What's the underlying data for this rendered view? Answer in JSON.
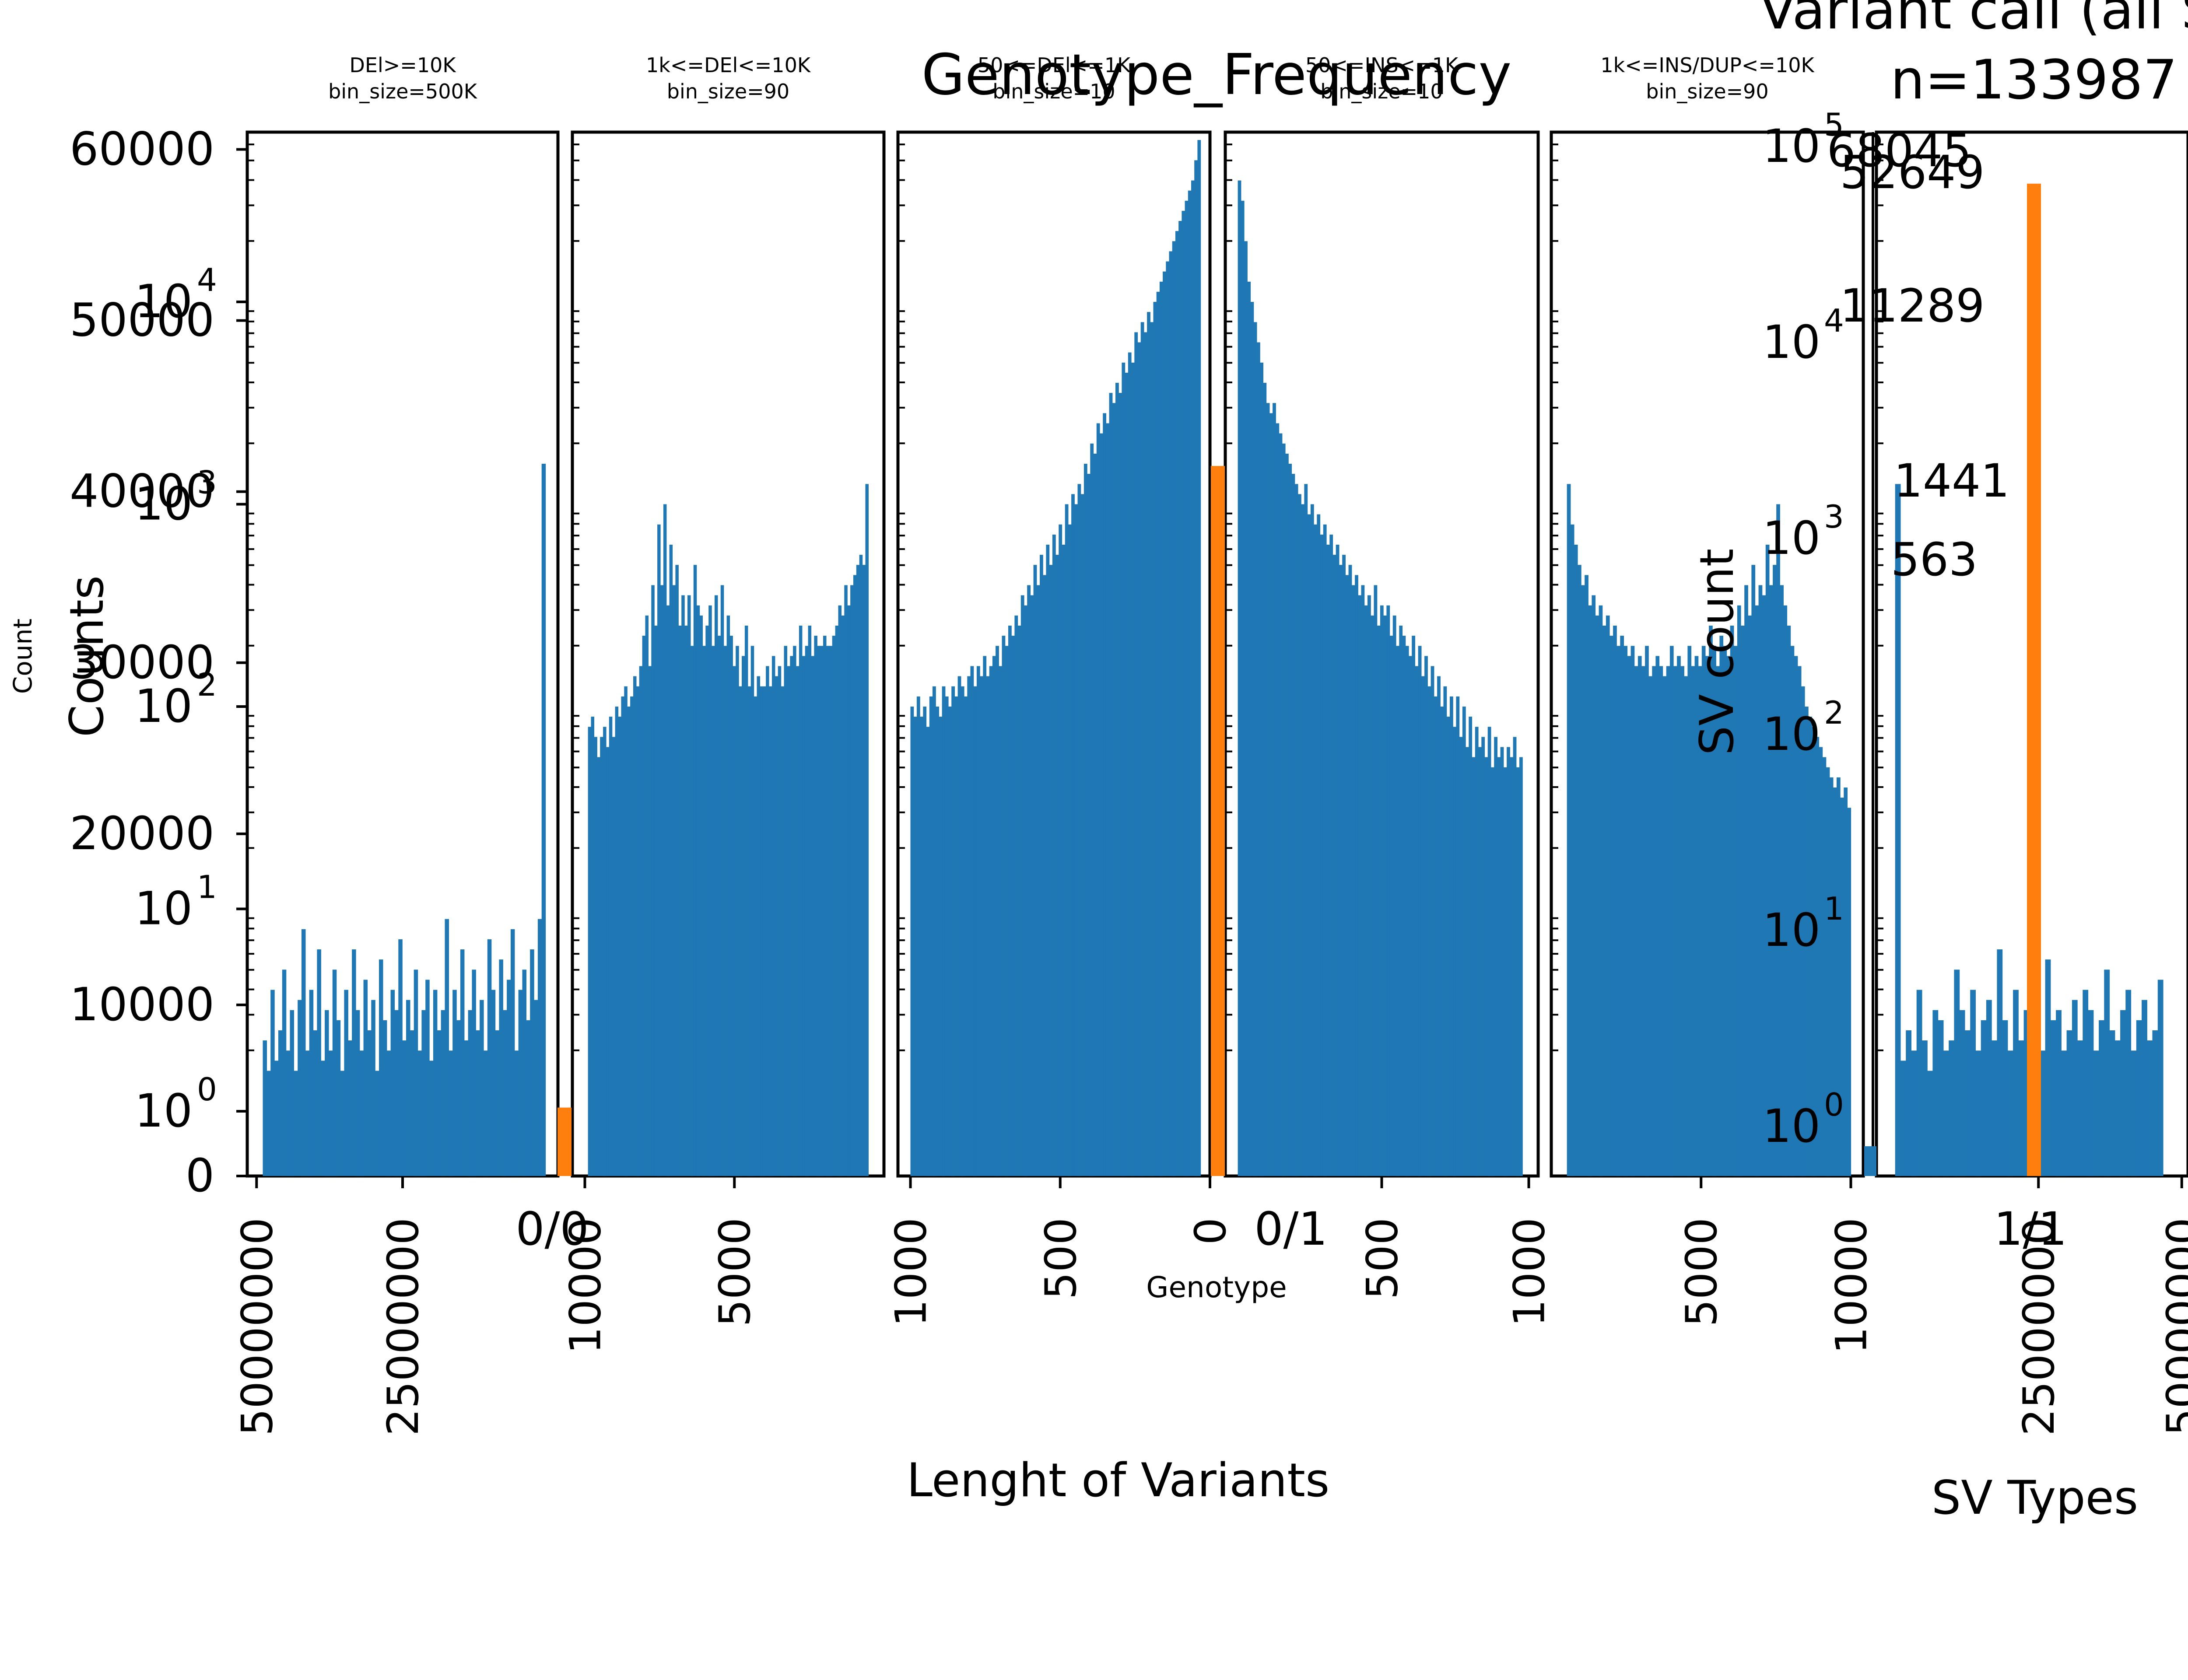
{
  "chart_data": {
    "type": "bar",
    "colors": {
      "bars": "#1f77b4",
      "genotype": "#ff7f0e",
      "frame": "#000000"
    },
    "overlay_texts": {
      "genotype_title": "Genotype_Frequency",
      "variant_title_line1": "Variant call (all S",
      "variant_title_line2": "n=133987",
      "xlabel_main": "Lenght of Variants",
      "xlabel_genotype": "Genotype",
      "xlabel_svtypes": "SV Types",
      "ylabel_counts": "Counts",
      "ylabel_count": "Count",
      "ylabel_svcount": "SV count"
    },
    "genotype": {
      "title": "Genotype_Frequency",
      "categories": [
        "0/0",
        "0/1",
        "1/1"
      ],
      "values": [
        4000,
        41500,
        58000
      ],
      "ylim": [
        0,
        60500
      ],
      "yticks": [
        "0",
        "10000",
        "20000",
        "30000",
        "40000",
        "50000",
        "60000"
      ]
    },
    "sv_types": {
      "labels": [
        "68045",
        "52649",
        "11289",
        "1441",
        "563"
      ],
      "values": [
        68045,
        52649,
        11289,
        1441,
        563
      ],
      "yscale": "log"
    },
    "histogram_ylog_ticks": [
      "10^0",
      "10^1",
      "10^2",
      "10^3",
      "10^4"
    ],
    "sv_ylog_ticks": [
      "10^0",
      "10^1",
      "10^2",
      "10^3",
      "10^4",
      "10^5"
    ],
    "panels": [
      {
        "title_line1": "DEl>=10K",
        "title_line2": "bin_size=500K",
        "ticks": [
          "50000000",
          "25000000"
        ],
        "tick_fracs": [
          0.03,
          0.5
        ],
        "bins_log": [
          0.35,
          0.2,
          0.6,
          0.25,
          0.4,
          0.7,
          0.3,
          0.5,
          0.2,
          0.55,
          0.9,
          0.3,
          0.6,
          0.4,
          0.8,
          0.25,
          0.5,
          0.3,
          0.7,
          0.45,
          0.2,
          0.6,
          0.35,
          0.8,
          0.5,
          0.3,
          0.65,
          0.4,
          0.55,
          0.2,
          0.75,
          0.45,
          0.3,
          0.6,
          0.5,
          0.85,
          0.35,
          0.55,
          0.4,
          0.7,
          0.3,
          0.5,
          0.65,
          0.25,
          0.6,
          0.4,
          0.5,
          0.95,
          0.3,
          0.6,
          0.45,
          0.8,
          0.35,
          0.5,
          0.7,
          0.4,
          0.55,
          0.3,
          0.85,
          0.6,
          0.4,
          0.75,
          0.5,
          0.65,
          0.9,
          0.3,
          0.6,
          0.7,
          0.45,
          0.8,
          0.55,
          0.95,
          3.2
        ],
        "baseline": 0.0,
        "x_start": 0.05,
        "x_end": 0.96
      },
      {
        "title_line1": "1k<=DEl<=10K",
        "title_line2": "bin_size=90",
        "ticks": [
          "10000",
          "5000"
        ],
        "tick_fracs": [
          0.04,
          0.52
        ],
        "bins_log": [
          1.9,
          1.95,
          1.85,
          1.75,
          1.85,
          1.9,
          1.8,
          1.95,
          1.85,
          2.0,
          1.95,
          2.05,
          2.1,
          2.0,
          2.05,
          2.15,
          2.1,
          2.2,
          2.35,
          2.45,
          2.2,
          2.6,
          2.4,
          2.9,
          2.6,
          3.0,
          2.5,
          2.8,
          2.6,
          2.7,
          2.4,
          2.55,
          2.4,
          2.55,
          2.3,
          2.7,
          2.5,
          2.45,
          2.3,
          2.4,
          2.5,
          2.3,
          2.55,
          2.35,
          2.6,
          2.3,
          2.45,
          2.35,
          2.2,
          2.3,
          2.1,
          2.25,
          2.4,
          2.1,
          2.3,
          2.05,
          2.15,
          2.1,
          2.1,
          2.2,
          2.1,
          2.25,
          2.15,
          2.2,
          2.1,
          2.3,
          2.2,
          2.25,
          2.3,
          2.2,
          2.4,
          2.25,
          2.3,
          2.4,
          2.25,
          2.35,
          2.3,
          2.3,
          2.35,
          2.3,
          2.3,
          2.35,
          2.4,
          2.5,
          2.45,
          2.6,
          2.5,
          2.6,
          2.65,
          2.7,
          2.75,
          2.7,
          3.1
        ],
        "baseline": 0.0,
        "x_start": 0.05,
        "x_end": 0.95
      },
      {
        "title_line1": "50<=DEl<=1K",
        "title_line2": "bin_size=10",
        "ticks": [
          "1000",
          "500",
          "0"
        ],
        "tick_fracs": [
          0.04,
          0.52,
          1.0
        ],
        "bins_log": [
          2.0,
          1.95,
          2.05,
          1.95,
          2.0,
          1.9,
          2.05,
          2.1,
          2.0,
          1.95,
          2.1,
          2.05,
          2.0,
          2.1,
          2.05,
          2.15,
          2.1,
          2.05,
          2.15,
          2.2,
          2.1,
          2.2,
          2.15,
          2.25,
          2.15,
          2.2,
          2.25,
          2.3,
          2.2,
          2.35,
          2.3,
          2.4,
          2.35,
          2.45,
          2.4,
          2.55,
          2.5,
          2.6,
          2.55,
          2.7,
          2.6,
          2.75,
          2.65,
          2.8,
          2.7,
          2.85,
          2.75,
          2.9,
          2.8,
          3.0,
          2.9,
          3.05,
          3.0,
          3.1,
          3.05,
          3.2,
          3.15,
          3.3,
          3.25,
          3.4,
          3.35,
          3.45,
          3.4,
          3.55,
          3.5,
          3.6,
          3.55,
          3.7,
          3.65,
          3.75,
          3.7,
          3.85,
          3.8,
          3.9,
          3.85,
          3.95,
          3.9,
          4.0,
          4.05,
          4.1,
          4.15,
          4.2,
          4.25,
          4.3,
          4.35,
          4.4,
          4.45,
          4.5,
          4.55,
          4.6,
          4.7,
          4.8
        ],
        "baseline": 0.0,
        "x_start": 0.04,
        "x_end": 0.97
      },
      {
        "title_line1": "50<=INS<=1K",
        "title_line2": "bin_size=10",
        "ticks": [
          "500",
          "1000"
        ],
        "tick_fracs": [
          0.5,
          0.97
        ],
        "bins_log": [
          4.6,
          4.5,
          4.3,
          4.1,
          4.0,
          3.9,
          3.8,
          3.7,
          3.6,
          3.5,
          3.45,
          3.5,
          3.4,
          3.35,
          3.3,
          3.25,
          3.2,
          3.15,
          3.1,
          3.05,
          3.0,
          3.1,
          2.95,
          3.0,
          2.9,
          2.95,
          2.85,
          2.9,
          2.8,
          2.85,
          2.75,
          2.8,
          2.7,
          2.75,
          2.65,
          2.7,
          2.6,
          2.65,
          2.55,
          2.6,
          2.5,
          2.55,
          2.45,
          2.6,
          2.4,
          2.5,
          2.45,
          2.5,
          2.35,
          2.45,
          2.3,
          2.4,
          2.35,
          2.3,
          2.25,
          2.35,
          2.2,
          2.3,
          2.15,
          2.25,
          2.1,
          2.2,
          2.05,
          2.15,
          2.0,
          2.1,
          1.95,
          2.05,
          1.9,
          2.05,
          1.85,
          2.0,
          1.8,
          1.95,
          1.75,
          1.9,
          1.8,
          1.85,
          1.75,
          1.9,
          1.7,
          1.85,
          1.75,
          1.8,
          1.7,
          1.8,
          1.75,
          1.85,
          1.7,
          1.75
        ],
        "baseline": 0.0,
        "x_start": 0.04,
        "x_end": 0.95
      },
      {
        "title_line1": "1k<=INS/DUP<=10K",
        "title_line2": "bin_size=90",
        "ticks": [
          "5000",
          "10000"
        ],
        "tick_fracs": [
          0.48,
          0.96
        ],
        "bins_log": [
          3.1,
          2.9,
          2.8,
          2.7,
          2.6,
          2.65,
          2.5,
          2.55,
          2.45,
          2.5,
          2.4,
          2.45,
          2.35,
          2.4,
          2.3,
          2.35,
          2.3,
          2.25,
          2.3,
          2.2,
          2.25,
          2.2,
          2.3,
          2.15,
          2.2,
          2.25,
          2.2,
          2.15,
          2.2,
          2.3,
          2.2,
          2.25,
          2.2,
          2.15,
          2.3,
          2.2,
          2.25,
          2.2,
          2.3,
          2.25,
          2.4,
          2.3,
          2.2,
          2.35,
          2.3,
          2.25,
          2.4,
          2.3,
          2.5,
          2.4,
          2.6,
          2.45,
          2.7,
          2.5,
          2.6,
          2.55,
          2.8,
          2.6,
          2.7,
          3.0,
          2.6,
          2.5,
          2.4,
          2.3,
          2.25,
          2.2,
          2.1,
          2.0,
          1.95,
          1.9,
          1.85,
          1.8,
          1.75,
          1.7,
          1.65,
          1.6,
          1.65,
          1.55,
          1.6,
          1.5
        ],
        "baseline": 0.0,
        "x_start": 0.05,
        "x_end": 0.96
      },
      {
        "title_line1": "",
        "title_line2": "",
        "ticks": [
          "1/1",
          "25000000",
          "50000000"
        ],
        "tick_fracs": [
          0.5,
          0.52,
          0.98
        ],
        "bins_log": [
          3.1,
          0.25,
          0.4,
          0.3,
          0.6,
          0.35,
          0.2,
          0.5,
          0.45,
          0.3,
          0.35,
          0.7,
          0.5,
          0.4,
          0.6,
          0.3,
          0.45,
          0.55,
          0.35,
          0.8,
          0.45,
          0.3,
          0.6,
          0.35,
          0.5,
          0.7,
          0.4,
          0.3,
          0.75,
          0.45,
          0.5,
          0.3,
          0.4,
          0.55,
          0.35,
          0.6,
          0.5,
          0.3,
          0.45,
          0.7,
          0.4,
          0.35,
          0.5,
          0.6,
          0.3,
          0.45,
          0.55,
          0.35,
          0.4,
          0.65
        ],
        "baseline": 0.0,
        "x_start": 0.06,
        "x_end": 0.92
      }
    ]
  }
}
